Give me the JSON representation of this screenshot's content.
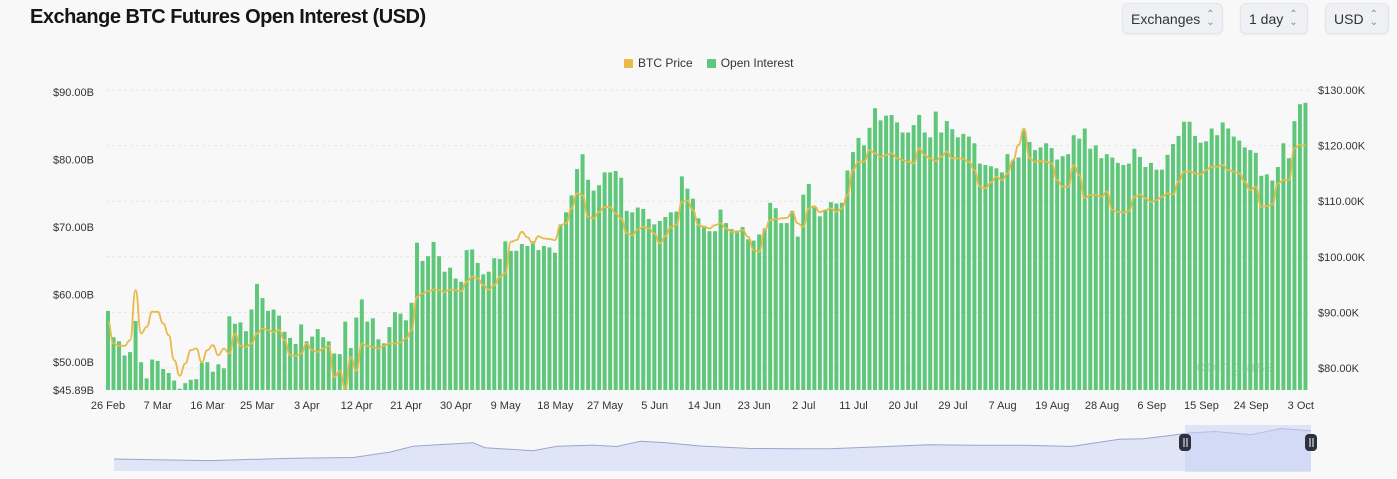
{
  "header": {
    "title": "Exchange BTC Futures Open Interest (USD)"
  },
  "controls": {
    "exchanges": "Exchanges",
    "interval": "1 day",
    "currency": "USD"
  },
  "watermark": "coinglass",
  "colors": {
    "open_interest": "#5ec77a",
    "btc_price": "#e9b949",
    "navigator": "#dfe4f7",
    "navigator_line": "#9aa6cf"
  },
  "chart_data": {
    "type": "bar+line",
    "legend": {
      "placement": "top-center",
      "entries": [
        "BTC Price",
        "Open Interest"
      ]
    },
    "xlabel": "",
    "x_tick_labels": [
      "26 Feb",
      "7 Mar",
      "16 Mar",
      "25 Mar",
      "3 Apr",
      "12 Apr",
      "21 Apr",
      "30 Apr",
      "9 May",
      "18 May",
      "27 May",
      "5 Jun",
      "14 Jun",
      "23 Jun",
      "2 Jul",
      "11 Jul",
      "20 Jul",
      "29 Jul",
      "7 Aug",
      "19 Aug",
      "28 Aug",
      "6 Sep",
      "15 Sep",
      "24 Sep",
      "3 Oct"
    ],
    "y_left": {
      "ticks": [
        "$45.89B",
        "$50.00B",
        "$60.00B",
        "$70.00B",
        "$80.00B",
        "$90.00B"
      ],
      "tick_values": [
        45.89,
        50,
        60,
        70,
        80,
        90
      ],
      "range": [
        45.89,
        90
      ],
      "unit": "B USD"
    },
    "y_right": {
      "ticks": [
        "$80.00K",
        "$90.00K",
        "$100.00K",
        "$110.00K",
        "$120.00K",
        "$130.00K"
      ],
      "tick_values": [
        80,
        90,
        100,
        110,
        120,
        130
      ],
      "range": [
        75,
        130
      ],
      "unit": "K USD"
    },
    "grid": true,
    "series": [
      {
        "name": "Open Interest",
        "type": "bar",
        "axis": "left",
        "values": [
          57.6,
          53.7,
          53.1,
          51.0,
          51.5,
          56.1,
          50.0,
          47.6,
          50.4,
          50.2,
          49.0,
          48.4,
          47.3,
          46.1,
          46.9,
          47.4,
          47.5,
          49.9,
          50.0,
          48.6,
          49.7,
          49.1,
          56.8,
          55.7,
          55.9,
          54.6,
          57.8,
          61.6,
          59.5,
          57.6,
          57.8,
          56.9,
          54.5,
          53.6,
          52.7,
          55.6,
          53.1,
          53.8,
          54.9,
          53.7,
          53.1,
          51.3,
          51.2,
          56.0,
          52.1,
          56.6,
          59.3,
          56.0,
          56.5,
          53.4,
          52.8,
          55.2,
          57.4,
          57.2,
          56.2,
          58.8,
          67.7,
          65.0,
          65.7,
          67.8,
          65.7,
          63.4,
          64.0,
          62.4,
          61.9,
          66.6,
          66.7,
          64.7,
          63.0,
          63.4,
          65.4,
          65.3,
          67.9,
          66.5,
          66.5,
          67.5,
          67.2,
          67.9,
          66.6,
          67.2,
          67.0,
          66.2,
          70.4,
          72.2,
          74.7,
          78.6,
          80.8,
          77.0,
          75.4,
          76.2,
          78.1,
          78.1,
          78.3,
          77.3,
          72.4,
          72.2,
          72.9,
          72.7,
          71.2,
          70.4,
          70.9,
          71.5,
          72.2,
          72.3,
          77.5,
          75.7,
          74.2,
          71.3,
          70.2,
          69.4,
          69.4,
          72.6,
          70.6,
          69.7,
          69.5,
          70.0,
          68.2,
          68.0,
          68.9,
          69.8,
          73.6,
          72.8,
          70.6,
          70.6,
          72.4,
          68.6,
          74.8,
          76.4,
          72.9,
          71.6,
          72.5,
          73.7,
          73.5,
          73.6,
          78.4,
          81.1,
          83.2,
          82.1,
          84.7,
          87.6,
          85.8,
          86.5,
          86.6,
          85.5,
          84.0,
          84.0,
          85.1,
          86.6,
          84.0,
          83.3,
          87.1,
          84.0,
          85.7,
          84.5,
          83.3,
          83.8,
          83.4,
          82.4,
          79.4,
          79.2,
          79.0,
          78.7,
          78.1,
          80.8,
          79.9,
          80.3,
          84.3,
          82.6,
          81.4,
          81.8,
          82.4,
          81.7,
          80.0,
          80.5,
          80.8,
          83.6,
          83.1,
          84.6,
          81.6,
          82.1,
          80.2,
          80.8,
          80.3,
          79.5,
          79.2,
          79.4,
          81.6,
          80.4,
          78.9,
          79.5,
          78.5,
          78.5,
          80.7,
          82.3,
          83.5,
          85.6,
          85.6,
          83.5,
          82.5,
          82.7,
          84.6,
          83.6,
          85.5,
          84.6,
          83.4,
          82.8,
          81.8,
          81.4,
          81.0,
          77.6,
          77.8,
          76.9,
          78.9,
          82.4,
          80.2,
          85.7,
          88.2,
          88.4
        ]
      },
      {
        "name": "BTC Price",
        "type": "line",
        "axis": "right",
        "values": [
          88.3,
          84.4,
          84.0,
          84.0,
          85.0,
          94.0,
          86.2,
          87.4,
          90.1,
          90.1,
          88.0,
          85.9,
          81.4,
          78.6,
          80.8,
          83.2,
          83.5,
          81.0,
          83.2,
          84.1,
          82.3,
          83.5,
          82.6,
          86.2,
          84.0,
          83.8,
          84.4,
          86.2,
          87.1,
          86.8,
          86.5,
          86.8,
          85.0,
          82.3,
          82.2,
          82.6,
          84.4,
          83.2,
          82.9,
          83.5,
          84.0,
          78.3,
          79.5,
          76.3,
          82.0,
          79.5,
          84.4,
          84.0,
          83.8,
          83.5,
          84.0,
          84.4,
          84.4,
          84.6,
          85.3,
          86.8,
          92.8,
          93.4,
          93.8,
          94.1,
          94.0,
          93.7,
          94.1,
          94.0,
          93.8,
          95.5,
          96.4,
          96.1,
          94.9,
          94.1,
          94.9,
          96.4,
          97.0,
          102.7,
          103.0,
          104.5,
          103.5,
          102.4,
          103.7,
          103.3,
          103.2,
          103.0,
          105.7,
          106.0,
          108.7,
          111.4,
          111.1,
          107.2,
          106.9,
          108.1,
          109.0,
          108.9,
          107.8,
          106.9,
          104.2,
          103.9,
          104.9,
          105.4,
          105.1,
          104.2,
          102.4,
          103.7,
          105.4,
          105.7,
          109.9,
          110.1,
          108.4,
          105.7,
          105.4,
          105.1,
          105.7,
          106.0,
          105.1,
          104.5,
          104.5,
          104.8,
          103.6,
          101.2,
          100.9,
          104.8,
          106.6,
          106.8,
          106.9,
          107.0,
          108.0,
          106.0,
          105.4,
          108.7,
          109.1,
          108.0,
          108.4,
          108.7,
          108.1,
          108.7,
          111.1,
          115.6,
          117.1,
          117.1,
          119.2,
          118.6,
          118.0,
          118.3,
          118.6,
          117.7,
          117.4,
          117.1,
          116.8,
          119.5,
          118.3,
          117.7,
          117.2,
          118.0,
          118.9,
          117.7,
          117.7,
          117.6,
          117.1,
          115.6,
          112.6,
          112.3,
          113.4,
          114.4,
          113.8,
          115.0,
          117.4,
          120.1,
          123.1,
          117.7,
          117.1,
          117.2,
          117.1,
          116.8,
          113.8,
          112.6,
          112.6,
          116.5,
          114.7,
          110.5,
          111.1,
          111.1,
          110.8,
          111.7,
          108.4,
          108.1,
          108.0,
          108.2,
          110.8,
          111.2,
          110.5,
          109.9,
          110.2,
          110.8,
          111.4,
          111.2,
          113.5,
          115.3,
          115.4,
          115.0,
          114.8,
          115.6,
          116.2,
          116.2,
          116.5,
          115.6,
          115.3,
          115.0,
          113.5,
          112.0,
          112.6,
          109.0,
          109.1,
          109.4,
          113.2,
          113.8,
          113.8,
          119.5,
          120.1,
          120.0
        ]
      }
    ]
  }
}
